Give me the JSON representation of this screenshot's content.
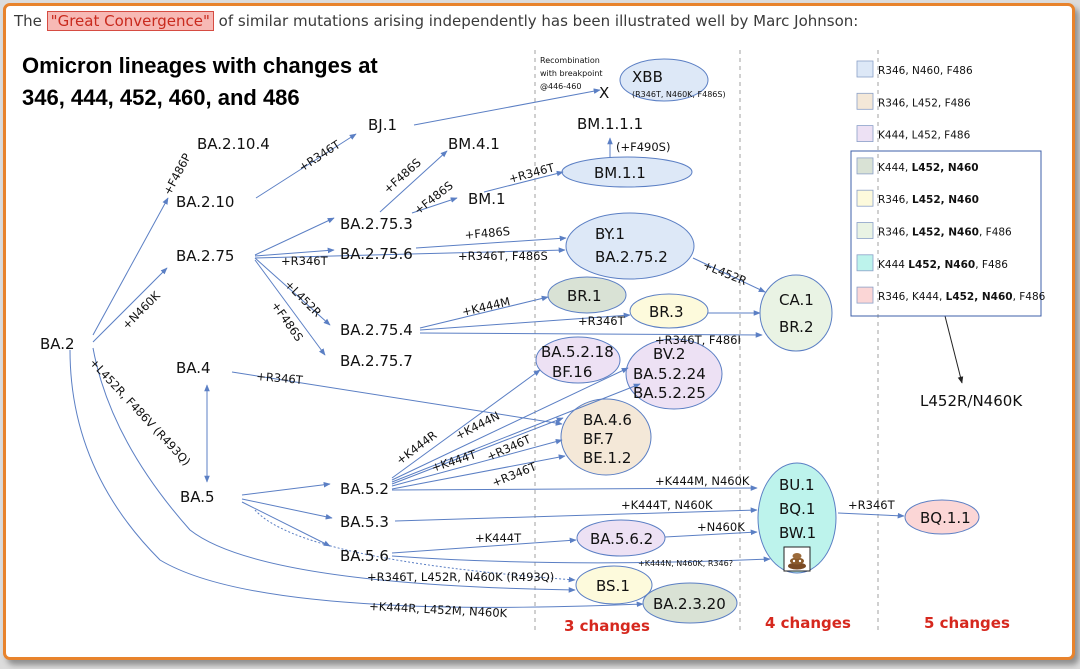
{
  "intro": {
    "before": "The ",
    "highlight": "\"Great Convergence\"",
    "after": " of similar mutations arising independently has been illustrated well by Marc Johnson:"
  },
  "title": {
    "line1": "Omicron lineages with changes at",
    "line2": "346, 444, 452, 460, and 486"
  },
  "nodes": {
    "ba2": "BA.2",
    "ba2_10_4": "BA.2.10.4",
    "ba2_10": "BA.2.10",
    "bj1": "BJ.1",
    "ba2_75": "BA.2.75",
    "ba2_75_3": "BA.2.75.3",
    "ba2_75_6": "BA.2.75.6",
    "ba2_75_4": "BA.2.75.4",
    "ba2_75_7": "BA.2.75.7",
    "bm4_1": "BM.4.1",
    "bm1": "BM.1",
    "bm1_1": "BM.1.1",
    "bm1_1_1": "BM.1.1.1",
    "xbb": "XBB",
    "xbb_sub": "(R346T, N460K, F486S)",
    "x_mark": "X",
    "by1": "BY.1",
    "ba2_75_2": "BA.2.75.2",
    "br1": "BR.1",
    "br3": "BR.3",
    "ca1": "CA.1",
    "br2": "BR.2",
    "ba4": "BA.4",
    "ba5": "BA.5",
    "ba5_2_18": "BA.5.2.18",
    "bf16": "BF.16",
    "bv2": "BV.2",
    "ba5_2_24": "BA.5.2.24",
    "ba5_2_25": "BA.5.2.25",
    "ba4_6": "BA.4.6",
    "bf7": "BF.7",
    "be1_2": "BE.1.2",
    "ba5_2": "BA.5.2",
    "ba5_3": "BA.5.3",
    "ba5_6": "BA.5.6",
    "ba5_6_2": "BA.5.6.2",
    "bu1": "BU.1",
    "bq1": "BQ.1",
    "bw1": "BW.1",
    "bq1_1": "BQ.1.1",
    "bs1": "BS.1",
    "ba2_3_20": "BA.2.3.20",
    "l452r_n460k": "L452R/N460K"
  },
  "labels": {
    "recomb1": "Recombination",
    "recomb2": "with breakpoint",
    "recomb3": "@446-460",
    "f490s": "(+F490S)",
    "f486p": "+F486P",
    "r346t_bj": "+R346T",
    "n460k": "+N460K",
    "f486s_a": "+F486S",
    "f486s_b": "+F486S",
    "r346t_bm": "+R346T",
    "r346t_756": "+R346T",
    "f486s_by": "+F486S",
    "r346t_f486s": "+R346T, F486S",
    "l452r_754": "+L452R",
    "f486s_757": "+F486S",
    "k444m_br1": "+K444M",
    "r346t_br3": "+R346T",
    "l452r_ca": "+L452R",
    "r346t_f486i": "+R346T, F486I",
    "l452r_f486v": "+L452R, F486V (R493Q)",
    "r346t_ba4": "+R346T",
    "k444r": "+K444R",
    "k444n": "+K444N",
    "k444t": "+K444T",
    "r346t_bf7": "+R346T",
    "r346t_be": "+R346T",
    "k444m_n460k": "+K444M, N460K",
    "k444t_n460k": "+K444T, N460K",
    "k444t_562": "+K444T",
    "n460k_bw": "+N460K",
    "r346t_bq": "+R346T",
    "poop_label": "+K444N, N460K, R346?",
    "bs1_label": "+R346T, L452R, N460K (R493Q)",
    "ba2320_label": "+K444R, L452M, N460K"
  },
  "columns": {
    "three": "3 changes",
    "four": "4 changes",
    "five": "5 changes"
  },
  "legend": [
    {
      "color": "#dde8f7",
      "parts": [
        {
          "t": "R346, N460, F486",
          "b": false
        }
      ]
    },
    {
      "color": "#f4e8d8",
      "parts": [
        {
          "t": "R346, L452, F486",
          "b": false
        }
      ]
    },
    {
      "color": "#ede1f4",
      "parts": [
        {
          "t": "K444, L452, F486",
          "b": false
        }
      ]
    },
    {
      "color": "#d9e2d5",
      "parts": [
        {
          "t": "K444, ",
          "b": false
        },
        {
          "t": "L452, N460",
          "b": true
        }
      ]
    },
    {
      "color": "#fdfadc",
      "parts": [
        {
          "t": "R346, ",
          "b": false
        },
        {
          "t": "L452, N460",
          "b": true
        }
      ]
    },
    {
      "color": "#e9f3e4",
      "parts": [
        {
          "t": "R346, ",
          "b": false
        },
        {
          "t": "L452, N460",
          "b": true
        },
        {
          "t": ", F486",
          "b": false
        }
      ]
    },
    {
      "color": "#bdf3ec",
      "parts": [
        {
          "t": "K444 ",
          "b": false
        },
        {
          "t": "L452, N460",
          "b": true
        },
        {
          "t": ", F486",
          "b": false
        }
      ]
    },
    {
      "color": "#fbd6d6",
      "parts": [
        {
          "t": "R346, K444, ",
          "b": false
        },
        {
          "t": "L452, N460",
          "b": true
        },
        {
          "t": ", F486",
          "b": false
        }
      ]
    }
  ]
}
